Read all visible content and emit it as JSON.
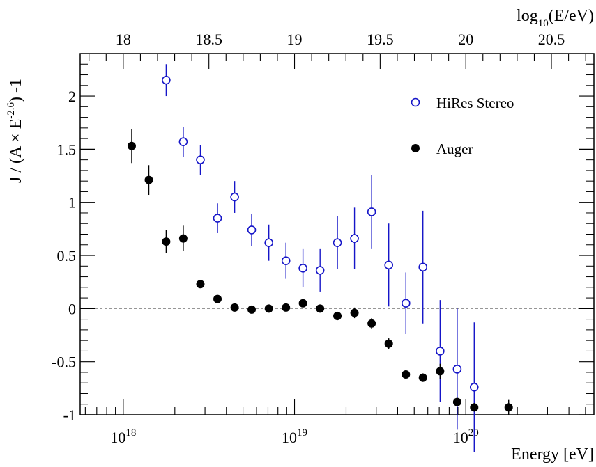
{
  "chart_data": {
    "type": "scatter",
    "x_scale": "log",
    "xlim": [
      5.6e+17,
      5.6e+20
    ],
    "ylim": [
      -1.0,
      2.4
    ],
    "xlabel": "Energy [eV]",
    "ylabel_parts": {
      "pre": "J / (A ",
      "times": "×",
      "e": " E",
      "exp": "-2.6",
      "post": ") -1"
    },
    "top_axis_label": {
      "base": "log",
      "sub": "10",
      "rest": "(E/eV)"
    },
    "top_ticks": [
      "18",
      "18.5",
      "19",
      "19.5",
      "20",
      "20.5"
    ],
    "bottom_ticks": [
      {
        "value": 1e+18,
        "base": "10",
        "exp": "18"
      },
      {
        "value": 1e+19,
        "base": "10",
        "exp": "19"
      },
      {
        "value": 1e+20,
        "base": "10",
        "exp": "20"
      }
    ],
    "y_ticks": [
      "-1",
      "-0.5",
      "0",
      "0.5",
      "1",
      "1.5",
      "2"
    ],
    "reference_line": 0,
    "legend_position": "top-right",
    "series": [
      {
        "name": "HiRes Stereo",
        "color": "#1515c8",
        "marker": "open-circle",
        "points": [
          {
            "x": 1.78e+18,
            "y": 2.15,
            "err": 0.15
          },
          {
            "x": 2.24e+18,
            "y": 1.57,
            "err": 0.14
          },
          {
            "x": 2.82e+18,
            "y": 1.4,
            "err": 0.14
          },
          {
            "x": 3.55e+18,
            "y": 0.85,
            "err": 0.14
          },
          {
            "x": 4.47e+18,
            "y": 1.05,
            "err": 0.15
          },
          {
            "x": 5.62e+18,
            "y": 0.74,
            "err": 0.15
          },
          {
            "x": 7.08e+18,
            "y": 0.62,
            "err": 0.17
          },
          {
            "x": 8.91e+18,
            "y": 0.45,
            "err": 0.17
          },
          {
            "x": 1.12e+19,
            "y": 0.38,
            "err": 0.18
          },
          {
            "x": 1.41e+19,
            "y": 0.36,
            "err": 0.2
          },
          {
            "x": 1.78e+19,
            "y": 0.62,
            "err": 0.25
          },
          {
            "x": 2.24e+19,
            "y": 0.66,
            "err": 0.29
          },
          {
            "x": 2.82e+19,
            "y": 0.91,
            "err": 0.35
          },
          {
            "x": 3.55e+19,
            "y": 0.41,
            "err": 0.39
          },
          {
            "x": 4.47e+19,
            "y": 0.05,
            "err": 0.29
          },
          {
            "x": 5.62e+19,
            "y": 0.39,
            "err": 0.53
          },
          {
            "x": 7.08e+19,
            "y": -0.4,
            "err": 0.48
          },
          {
            "x": 8.91e+19,
            "y": -0.57,
            "err": 0.57
          },
          {
            "x": 1.12e+20,
            "y": -0.74,
            "err": 0.61
          }
        ]
      },
      {
        "name": "Auger",
        "color": "#000000",
        "marker": "filled-circle",
        "points": [
          {
            "x": 1.12e+18,
            "y": 1.53,
            "err": 0.16
          },
          {
            "x": 1.41e+18,
            "y": 1.21,
            "err": 0.14
          },
          {
            "x": 1.78e+18,
            "y": 0.63,
            "err": 0.11
          },
          {
            "x": 2.24e+18,
            "y": 0.66,
            "err": 0.12
          },
          {
            "x": 2.82e+18,
            "y": 0.23,
            "err": 0.03
          },
          {
            "x": 3.55e+18,
            "y": 0.09,
            "err": 0.02
          },
          {
            "x": 4.47e+18,
            "y": 0.01,
            "err": 0.02
          },
          {
            "x": 5.62e+18,
            "y": -0.01,
            "err": 0.02
          },
          {
            "x": 7.08e+18,
            "y": 0.0,
            "err": 0.02
          },
          {
            "x": 8.91e+18,
            "y": 0.01,
            "err": 0.02
          },
          {
            "x": 1.12e+19,
            "y": 0.05,
            "err": 0.03
          },
          {
            "x": 1.41e+19,
            "y": 0.0,
            "err": 0.03
          },
          {
            "x": 1.78e+19,
            "y": -0.07,
            "err": 0.04
          },
          {
            "x": 2.24e+19,
            "y": -0.04,
            "err": 0.05
          },
          {
            "x": 2.82e+19,
            "y": -0.14,
            "err": 0.05
          },
          {
            "x": 3.55e+19,
            "y": -0.33,
            "err": 0.05
          },
          {
            "x": 4.47e+19,
            "y": -0.62,
            "err": 0.04
          },
          {
            "x": 5.62e+19,
            "y": -0.65,
            "err": 0.04
          },
          {
            "x": 7.08e+19,
            "y": -0.59,
            "err": 0.07
          },
          {
            "x": 8.91e+19,
            "y": -0.88,
            "err": 0.04
          },
          {
            "x": 1.12e+20,
            "y": -0.93,
            "err": 0.04
          },
          {
            "x": 1.78e+20,
            "y": -0.93,
            "err": 0.07
          }
        ]
      }
    ]
  }
}
